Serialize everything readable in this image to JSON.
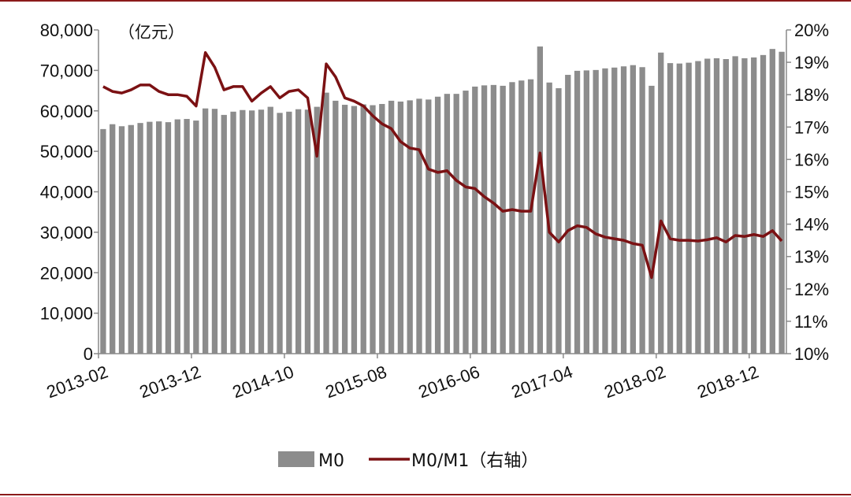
{
  "chart_data": {
    "type": "bar+line",
    "unit_label": "（亿元）",
    "x_tick_labels": [
      "2013-02",
      "2013-12",
      "2014-10",
      "2015-08",
      "2016-06",
      "2017-04",
      "2018-02",
      "2018-12"
    ],
    "x_tick_indices": [
      0,
      10,
      20,
      30,
      40,
      50,
      60,
      70
    ],
    "left_axis": {
      "min": 0,
      "max": 80000,
      "step": 10000,
      "tick_labels": [
        "0",
        "10,000",
        "20,000",
        "30,000",
        "40,000",
        "50,000",
        "60,000",
        "70,000",
        "80,000"
      ]
    },
    "right_axis": {
      "min": 10,
      "max": 20,
      "step": 1,
      "tick_labels": [
        "10%",
        "11%",
        "12%",
        "13%",
        "14%",
        "15%",
        "16%",
        "17%",
        "18%",
        "19%",
        "20%"
      ]
    },
    "legend": [
      {
        "name": "M0",
        "label": "M0",
        "kind": "bar",
        "color": "#8c8c8c"
      },
      {
        "name": "M0/M1",
        "label": "M0/M1（右轴）",
        "kind": "line",
        "color": "#7b1113"
      }
    ],
    "series": [
      {
        "name": "M0",
        "axis": "left",
        "values": [
          55500,
          56700,
          56200,
          56500,
          57000,
          57300,
          57400,
          57200,
          57900,
          58000,
          57600,
          60600,
          60500,
          59000,
          59800,
          60200,
          60100,
          60300,
          61000,
          59500,
          59800,
          60400,
          60300,
          61000,
          64500,
          62500,
          61500,
          61200,
          61600,
          61400,
          61700,
          62500,
          62300,
          62600,
          63000,
          62800,
          63500,
          64200,
          64200,
          65000,
          66000,
          66300,
          66400,
          66200,
          67100,
          67500,
          67800,
          75900,
          67000,
          65600,
          68900,
          69900,
          70000,
          70100,
          70500,
          70700,
          71000,
          71300,
          70800,
          66200,
          74400,
          71800,
          71700,
          71900,
          72300,
          72900,
          73000,
          72800,
          73500,
          73000,
          73200,
          73800,
          75300,
          74600
        ]
      },
      {
        "name": "M0/M1",
        "axis": "right",
        "values": [
          18.25,
          18.1,
          18.05,
          18.15,
          18.3,
          18.3,
          18.1,
          18.0,
          18.0,
          17.95,
          17.65,
          19.3,
          18.85,
          18.15,
          18.25,
          18.25,
          17.8,
          18.05,
          18.25,
          17.9,
          18.1,
          18.15,
          17.9,
          16.1,
          18.95,
          18.55,
          17.9,
          17.8,
          17.65,
          17.35,
          17.1,
          16.95,
          16.55,
          16.35,
          16.3,
          15.7,
          15.6,
          15.65,
          15.35,
          15.15,
          15.1,
          14.85,
          14.65,
          14.4,
          14.45,
          14.4,
          14.4,
          16.2,
          13.75,
          13.45,
          13.8,
          13.95,
          13.9,
          13.7,
          13.6,
          13.55,
          13.5,
          13.4,
          13.35,
          12.35,
          14.1,
          13.55,
          13.5,
          13.5,
          13.48,
          13.52,
          13.58,
          13.45,
          13.65,
          13.62,
          13.68,
          13.62,
          13.8,
          13.48
        ]
      }
    ]
  }
}
